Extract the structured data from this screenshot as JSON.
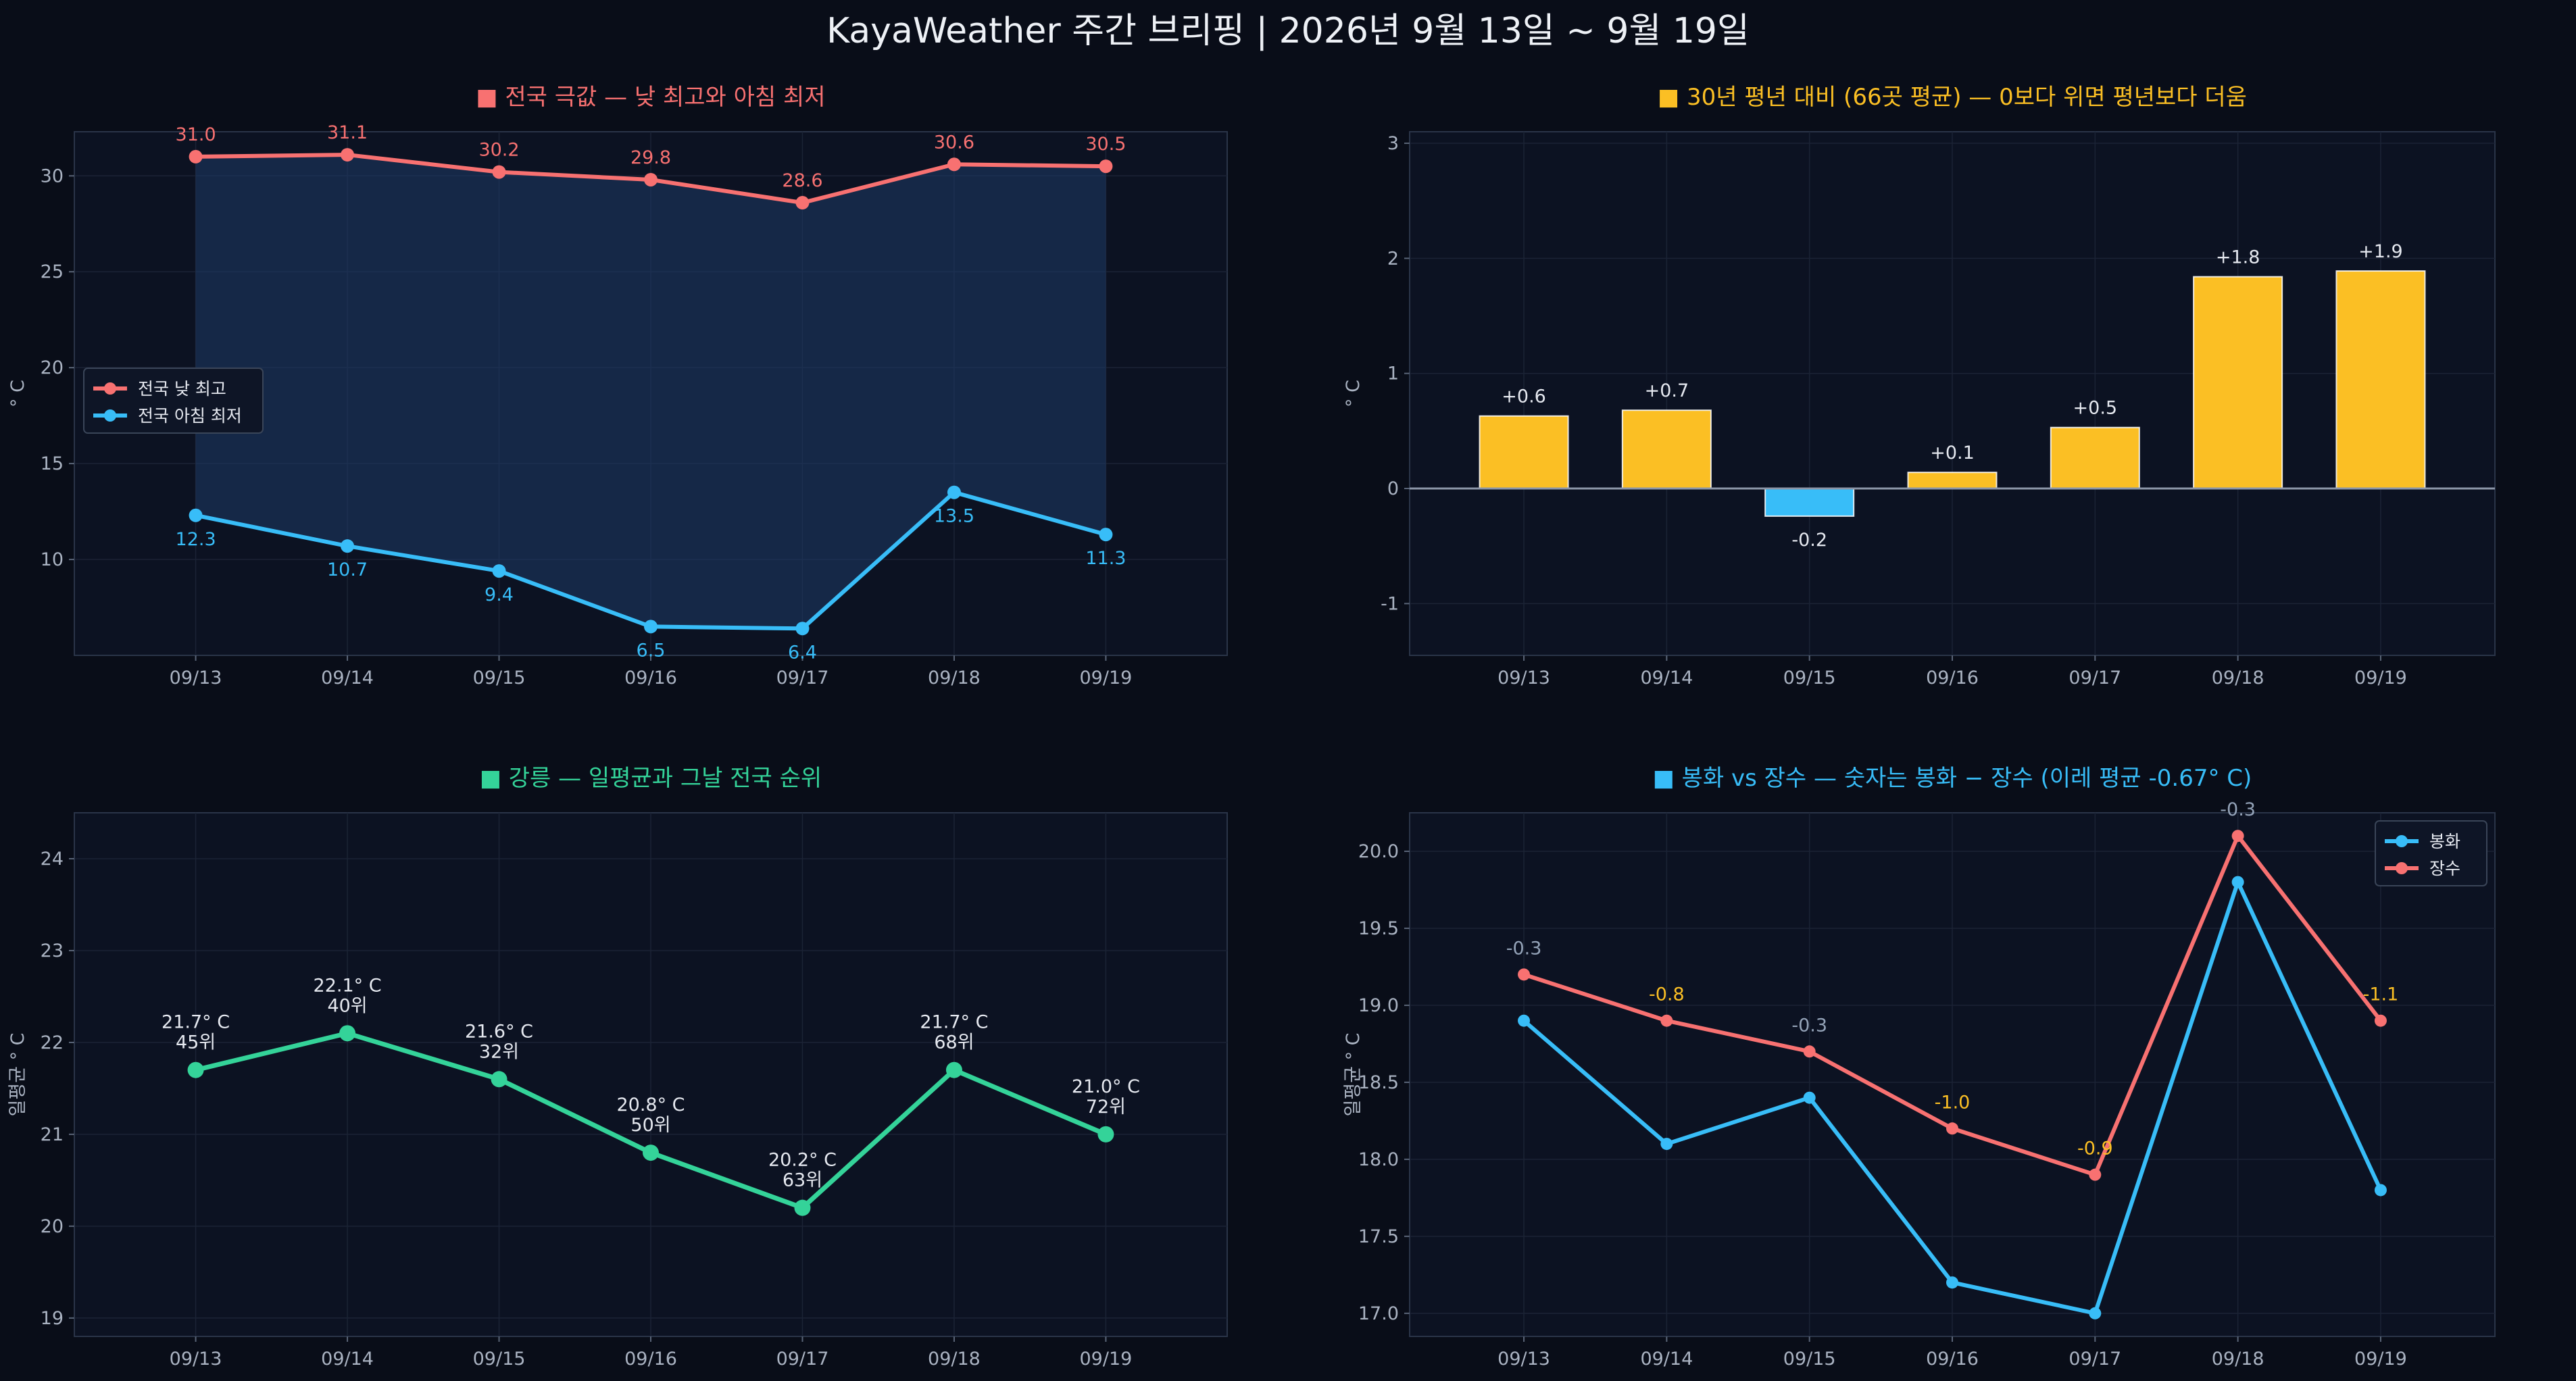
{
  "page": {
    "title": "KayaWeather 주간 브리핑 | 2026년 9월 13일 ~ 9월 19일"
  },
  "chart_data": [
    {
      "type": "line",
      "title": "■ 전국 극값 — 낮 최고와 아침 최저",
      "title_color": "#f87171",
      "ylabel": "° C",
      "categories": [
        "09/13",
        "09/14",
        "09/15",
        "09/16",
        "09/17",
        "09/18",
        "09/19"
      ],
      "ylim": [
        5.0,
        32.3
      ],
      "yticks": [
        10,
        15,
        20,
        25,
        30
      ],
      "fill_between": true,
      "legend": "center-left",
      "series": [
        {
          "name": "전국 낮 최고",
          "color": "#f87171",
          "values": [
            31.0,
            31.1,
            30.2,
            29.8,
            28.6,
            30.6,
            30.5
          ],
          "labels": [
            "31.0",
            "31.1",
            "30.2",
            "29.8",
            "28.6",
            "30.6",
            "30.5"
          ],
          "label_pos": "above"
        },
        {
          "name": "전국 아침 최저",
          "color": "#38bdf8",
          "values": [
            12.3,
            10.7,
            9.4,
            6.5,
            6.4,
            13.5,
            11.3
          ],
          "labels": [
            "12.3",
            "10.7",
            "9.4",
            "6.5",
            "6.4",
            "13.5",
            "11.3"
          ],
          "label_pos": "below"
        }
      ]
    },
    {
      "type": "bar",
      "title": "■ 30년 평년 대비 (66곳 평균) — 0보다 위면 평년보다 더움",
      "title_color": "#fbbf24",
      "ylabel": "° C",
      "categories": [
        "09/13",
        "09/14",
        "09/15",
        "09/16",
        "09/17",
        "09/18",
        "09/19"
      ],
      "values": [
        0.63,
        0.68,
        -0.24,
        0.14,
        0.53,
        1.84,
        1.89
      ],
      "labels": [
        "+0.6",
        "+0.7",
        "-0.2",
        "+0.1",
        "+0.5",
        "+1.8",
        "+1.9"
      ],
      "ylim": [
        -1.45,
        3.1
      ],
      "yticks": [
        -1,
        0,
        1,
        2,
        3
      ],
      "positive_color": "#fbbf24",
      "negative_color": "#38bdf8"
    },
    {
      "type": "line",
      "title": "■ 강릉 — 일평균과 그날 전국 순위",
      "title_color": "#34d399",
      "ylabel": "일평균 ° C",
      "categories": [
        "09/13",
        "09/14",
        "09/15",
        "09/16",
        "09/17",
        "09/18",
        "09/19"
      ],
      "ylim": [
        18.8,
        24.5
      ],
      "yticks": [
        19,
        20,
        21,
        22,
        23,
        24
      ],
      "series": [
        {
          "name": "강릉",
          "color": "#34d399",
          "values": [
            21.7,
            22.1,
            21.6,
            20.8,
            20.2,
            21.7,
            21.0
          ],
          "labels": [
            "21.7° C",
            "22.1° C",
            "21.6° C",
            "20.8° C",
            "20.2° C",
            "21.7° C",
            "21.0° C"
          ],
          "ranks": [
            "45위",
            "40위",
            "32위",
            "50위",
            "63위",
            "68위",
            "72위"
          ]
        }
      ]
    },
    {
      "type": "line",
      "title": "■ 봉화 vs 장수 — 숫자는 봉화 − 장수 (이레 평균 -0.67° C)",
      "title_color": "#38bdf8",
      "ylabel": "일평균 ° C",
      "categories": [
        "09/13",
        "09/14",
        "09/15",
        "09/16",
        "09/17",
        "09/18",
        "09/19"
      ],
      "ylim": [
        16.85,
        20.25
      ],
      "yticks": [
        17.0,
        17.5,
        18.0,
        18.5,
        19.0,
        19.5,
        20.0
      ],
      "ytick_labels": [
        "17.0",
        "17.5",
        "18.0",
        "18.5",
        "19.0",
        "19.5",
        "20.0"
      ],
      "legend": "top-right",
      "series": [
        {
          "name": "봉화",
          "color": "#38bdf8",
          "values": [
            18.9,
            18.1,
            18.4,
            17.2,
            17.0,
            19.8,
            17.8
          ]
        },
        {
          "name": "장수",
          "color": "#f87171",
          "values": [
            19.2,
            18.9,
            18.7,
            18.2,
            17.9,
            20.1,
            18.9
          ]
        }
      ],
      "differences": [
        "-0.3",
        "-0.8",
        "-0.3",
        "-1.0",
        "-0.9",
        "-0.3",
        "-1.1"
      ],
      "difference_colors": [
        "#94a3b8",
        "#fbbf24",
        "#94a3b8",
        "#fbbf24",
        "#fbbf24",
        "#94a3b8",
        "#fbbf24"
      ]
    }
  ]
}
